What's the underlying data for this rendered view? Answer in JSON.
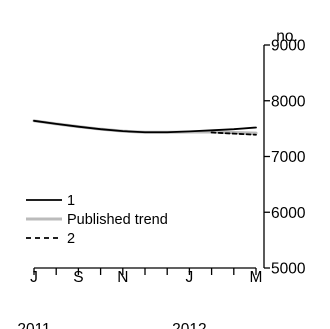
{
  "chart_data": {
    "type": "line",
    "unit_label": "no.",
    "x_ticks": [
      "J",
      "S",
      "N",
      "J",
      "M"
    ],
    "x_year_labels": [
      "2011",
      "2012"
    ],
    "y_ticks": [
      5000,
      6000,
      7000,
      8000,
      9000
    ],
    "y_tick_labels": [
      "5000",
      "6000",
      "7000",
      "8000",
      "9000"
    ],
    "ylim": [
      5000,
      9000
    ],
    "xlim": [
      0,
      10
    ],
    "grid": false,
    "legend_position": "bottom-left",
    "x": [
      0,
      1,
      2,
      3,
      4,
      5,
      6,
      7,
      8,
      9,
      10
    ],
    "series": [
      {
        "name": "1",
        "style": "solid",
        "color": "#000000",
        "values": [
          7640,
          7585,
          7535,
          7490,
          7455,
          7435,
          7435,
          7450,
          7470,
          7490,
          7520
        ]
      },
      {
        "name": "Published trend",
        "style": "solid",
        "color": "#bbbbbb",
        "values": [
          7640,
          7585,
          7535,
          7490,
          7455,
          7435,
          7435,
          7440,
          7440,
          7430,
          7420
        ]
      },
      {
        "name": "2",
        "style": "dashed",
        "color": "#000000",
        "values": [
          null,
          null,
          null,
          null,
          null,
          null,
          null,
          null,
          7430,
          7410,
          7390
        ]
      }
    ]
  }
}
